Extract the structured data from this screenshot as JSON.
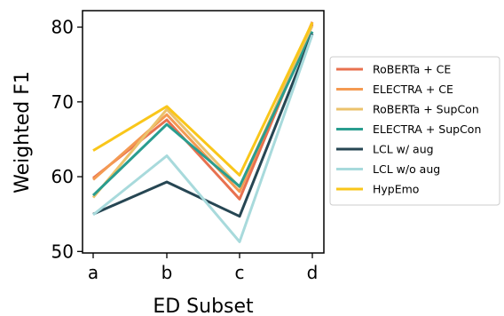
{
  "chart_data": {
    "type": "line",
    "title": "",
    "xlabel": "ED Subset",
    "ylabel": "Weighted F1",
    "categories": [
      "a",
      "b",
      "c",
      "d"
    ],
    "yticks": [
      50,
      60,
      70,
      80
    ],
    "ylim": [
      49.8,
      82.2
    ],
    "grid": false,
    "legend_position": "right",
    "series": [
      {
        "name": "RoBERTa + CE",
        "color": "#e8714f",
        "values": [
          59.8,
          67.6,
          57.0,
          80.4
        ]
      },
      {
        "name": "ELECTRA + CE",
        "color": "#f49a52",
        "values": [
          59.6,
          68.3,
          58.0,
          80.7
        ]
      },
      {
        "name": "RoBERTa + SupCon",
        "color": "#ebc26c",
        "values": [
          57.2,
          69.0,
          58.6,
          80.2
        ]
      },
      {
        "name": "ELECTRA + SupCon",
        "color": "#2a9d8f",
        "values": [
          57.5,
          67.0,
          58.7,
          79.4
        ]
      },
      {
        "name": "LCL w/ aug",
        "color": "#264653",
        "values": [
          55.0,
          59.3,
          54.7,
          79.1
        ]
      },
      {
        "name": "LCL w/o aug",
        "color": "#a8dadc",
        "values": [
          54.9,
          62.8,
          51.3,
          79.0
        ]
      },
      {
        "name": "HypEmo",
        "color": "#f9c61a",
        "values": [
          63.5,
          69.4,
          60.2,
          80.6
        ]
      }
    ]
  }
}
